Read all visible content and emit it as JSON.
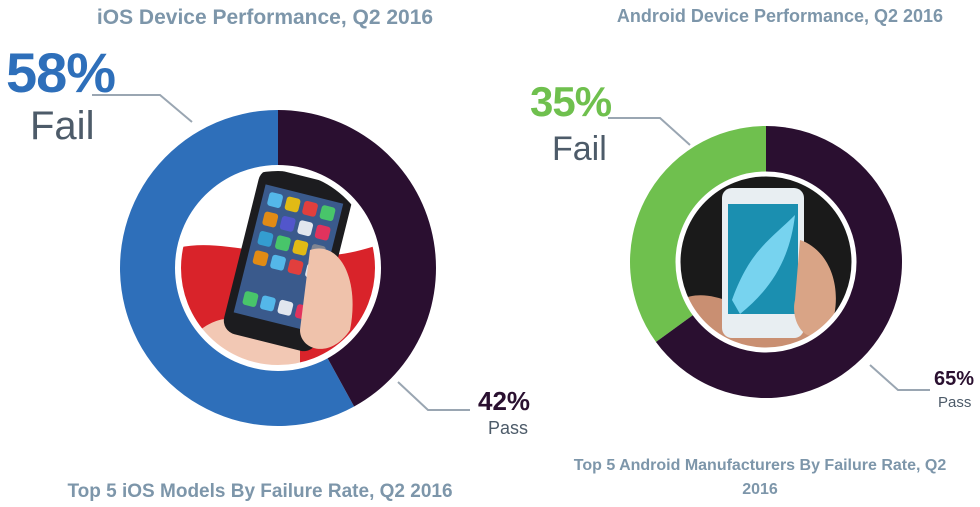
{
  "chart_data": [
    {
      "type": "pie",
      "title": "iOS Device Performance, Q2 2016",
      "subtitle": "Top 5 iOS Models By Failure Rate, Q2 2016",
      "slices": [
        {
          "label": "Fail",
          "value": 58,
          "display": "58%",
          "color": "#2e6fba"
        },
        {
          "label": "Pass",
          "value": 42,
          "display": "42%",
          "color": "#2a0f30"
        }
      ]
    },
    {
      "type": "pie",
      "title": "Android Device Performance, Q2 2016",
      "subtitle": "Top 5 Android Manufacturers By Failure Rate, Q2 2016",
      "slices": [
        {
          "label": "Fail",
          "value": 35,
          "display": "35%",
          "color": "#6fc04e"
        },
        {
          "label": "Pass",
          "value": 65,
          "display": "65%",
          "color": "#2a0f30"
        }
      ]
    }
  ]
}
